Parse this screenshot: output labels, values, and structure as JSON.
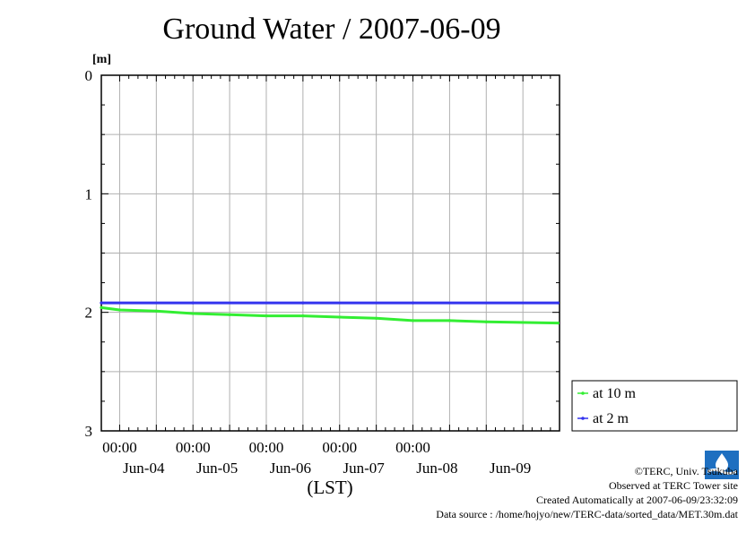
{
  "header": {
    "title": "Ground Water / 2007-06-09"
  },
  "chart_data": {
    "type": "line",
    "title": "Ground Water / 2007-06-09",
    "ylabel": "[m]",
    "xlabel": "(LST)",
    "ylim": [
      0,
      3
    ],
    "y_inverted": true,
    "y_ticks": [
      "0",
      "1",
      "2",
      "3"
    ],
    "x_range_days": [
      "Jun-04",
      "Jun-09"
    ],
    "x_tick_time_labels": [
      "00:00",
      "00:00",
      "00:00",
      "00:00",
      "00:00"
    ],
    "x_tick_date_labels": [
      "Jun-04",
      "Jun-05",
      "Jun-06",
      "Jun-07",
      "Jun-08",
      "Jun-09"
    ],
    "grid": true,
    "legend_position": "right-bottom",
    "series": [
      {
        "name": "at 10 m",
        "color": "#33ee33",
        "points": [
          [
            "2007-06-03 18:00",
            1.96
          ],
          [
            "2007-06-04 00:00",
            1.98
          ],
          [
            "2007-06-04 12:00",
            1.99
          ],
          [
            "2007-06-05 00:00",
            2.01
          ],
          [
            "2007-06-05 12:00",
            2.02
          ],
          [
            "2007-06-06 00:00",
            2.03
          ],
          [
            "2007-06-06 12:00",
            2.03
          ],
          [
            "2007-06-07 00:00",
            2.04
          ],
          [
            "2007-06-07 12:00",
            2.05
          ],
          [
            "2007-06-08 00:00",
            2.07
          ],
          [
            "2007-06-08 12:00",
            2.07
          ],
          [
            "2007-06-09 00:00",
            2.08
          ],
          [
            "2007-06-09 23:30",
            2.09
          ]
        ]
      },
      {
        "name": "at 2 m",
        "color": "#3333ee",
        "points": [
          [
            "2007-06-03 18:00",
            1.92
          ],
          [
            "2007-06-05 00:00",
            1.92
          ],
          [
            "2007-06-06 12:00",
            1.92
          ],
          [
            "2007-06-08 00:00",
            1.92
          ],
          [
            "2007-06-09 23:30",
            1.92
          ]
        ]
      }
    ]
  },
  "credits": {
    "copyright": "©TERC, Univ. Tsukuba",
    "observed": "Observed at TERC Tower site",
    "created": "Created Automatically at 2007-06-09/23:32:09",
    "source": "Data source : /home/hojyo/new/TERC-data/sorted_data/MET.30m.dat",
    "logo_text": "TERC"
  }
}
